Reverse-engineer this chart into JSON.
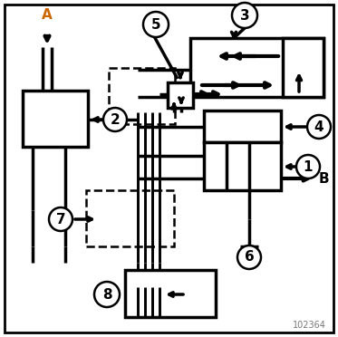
{
  "bg_color": "#ffffff",
  "black": "#000000",
  "orange_A": "#cc6600",
  "gray_wm": "#777777",
  "watermark": "102364",
  "lw_main": 2.5,
  "lw_thin": 1.8,
  "lw_border": 2.0,
  "figw": 3.73,
  "figh": 3.72,
  "dpi": 100
}
